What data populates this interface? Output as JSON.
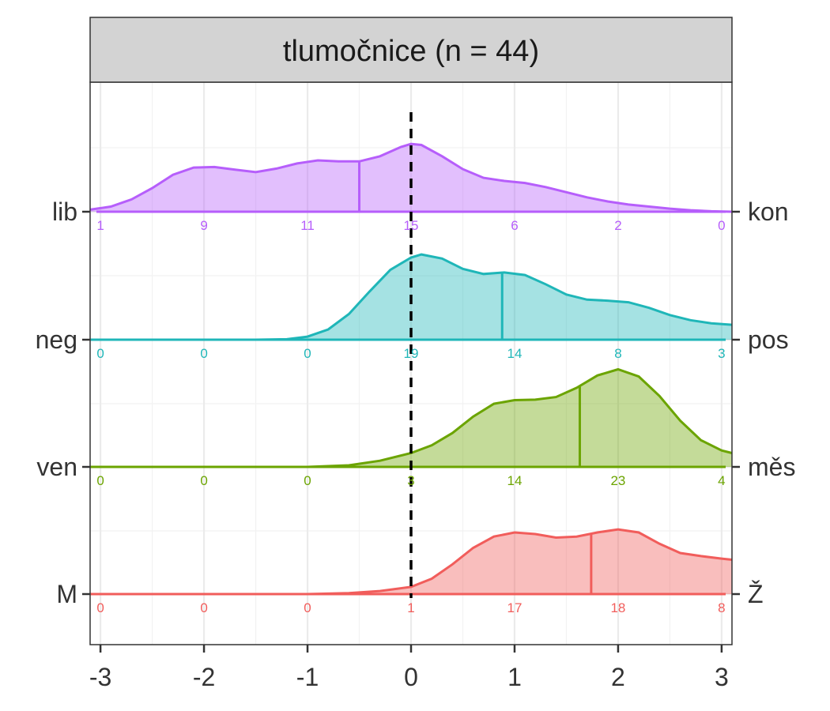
{
  "chart_data": {
    "type": "ridgeline",
    "title": "tlumočnice (n = 44)",
    "x_ticks": [
      "-3",
      "-2",
      "-1",
      "0",
      "1",
      "2",
      "3"
    ],
    "x_tick_values": [
      -3,
      -2,
      -1,
      0,
      1,
      2,
      3
    ],
    "xlim": [
      -3.1,
      3.1
    ],
    "reference_line_x": 0,
    "grid": true,
    "series": [
      {
        "left_label": "lib",
        "right_label": "kon",
        "color": "#b65efb",
        "counts": [
          "1",
          "9",
          "11",
          "15",
          "6",
          "2",
          "0"
        ],
        "mean": -0.5,
        "density": [
          [
            -3.1,
            0.04
          ],
          [
            -2.9,
            0.1
          ],
          [
            -2.7,
            0.24
          ],
          [
            -2.5,
            0.46
          ],
          [
            -2.3,
            0.72
          ],
          [
            -2.1,
            0.86
          ],
          [
            -1.9,
            0.87
          ],
          [
            -1.7,
            0.82
          ],
          [
            -1.5,
            0.77
          ],
          [
            -1.3,
            0.84
          ],
          [
            -1.1,
            0.94
          ],
          [
            -0.9,
            1.0
          ],
          [
            -0.7,
            0.98
          ],
          [
            -0.5,
            0.98
          ],
          [
            -0.3,
            1.08
          ],
          [
            -0.1,
            1.26
          ],
          [
            0.0,
            1.32
          ],
          [
            0.1,
            1.3
          ],
          [
            0.3,
            1.08
          ],
          [
            0.5,
            0.83
          ],
          [
            0.7,
            0.66
          ],
          [
            0.9,
            0.6
          ],
          [
            1.1,
            0.56
          ],
          [
            1.3,
            0.48
          ],
          [
            1.5,
            0.38
          ],
          [
            1.7,
            0.28
          ],
          [
            1.9,
            0.2
          ],
          [
            2.1,
            0.14
          ],
          [
            2.3,
            0.1
          ],
          [
            2.5,
            0.06
          ],
          [
            2.7,
            0.03
          ],
          [
            2.9,
            0.01
          ],
          [
            3.1,
            0.0
          ]
        ]
      },
      {
        "left_label": "neg",
        "right_label": "pos",
        "color": "#1fb6b8",
        "counts": [
          "0",
          "0",
          "0",
          "19",
          "14",
          "8",
          "3"
        ],
        "mean": 0.88,
        "density": [
          [
            -3.1,
            0.0
          ],
          [
            -1.5,
            0.0
          ],
          [
            -1.2,
            0.01
          ],
          [
            -1.0,
            0.06
          ],
          [
            -0.8,
            0.2
          ],
          [
            -0.6,
            0.5
          ],
          [
            -0.4,
            0.94
          ],
          [
            -0.2,
            1.36
          ],
          [
            0.0,
            1.6
          ],
          [
            0.1,
            1.66
          ],
          [
            0.3,
            1.58
          ],
          [
            0.5,
            1.38
          ],
          [
            0.7,
            1.28
          ],
          [
            0.9,
            1.31
          ],
          [
            1.1,
            1.26
          ],
          [
            1.3,
            1.08
          ],
          [
            1.5,
            0.88
          ],
          [
            1.7,
            0.78
          ],
          [
            1.9,
            0.76
          ],
          [
            2.1,
            0.73
          ],
          [
            2.3,
            0.62
          ],
          [
            2.5,
            0.48
          ],
          [
            2.7,
            0.38
          ],
          [
            2.9,
            0.32
          ],
          [
            3.1,
            0.29
          ]
        ]
      },
      {
        "left_label": "ven",
        "right_label": "měs",
        "color": "#6ba400",
        "counts": [
          "0",
          "0",
          "0",
          "3",
          "14",
          "23",
          "4"
        ],
        "mean": 1.63,
        "density": [
          [
            -3.1,
            0.0
          ],
          [
            -1.0,
            0.0
          ],
          [
            -0.6,
            0.03
          ],
          [
            -0.3,
            0.12
          ],
          [
            0.0,
            0.27
          ],
          [
            0.2,
            0.42
          ],
          [
            0.4,
            0.66
          ],
          [
            0.6,
            0.98
          ],
          [
            0.8,
            1.23
          ],
          [
            1.0,
            1.3
          ],
          [
            1.2,
            1.31
          ],
          [
            1.4,
            1.36
          ],
          [
            1.6,
            1.54
          ],
          [
            1.8,
            1.78
          ],
          [
            2.0,
            1.9
          ],
          [
            2.2,
            1.76
          ],
          [
            2.4,
            1.38
          ],
          [
            2.6,
            0.9
          ],
          [
            2.8,
            0.52
          ],
          [
            3.0,
            0.32
          ],
          [
            3.1,
            0.27
          ]
        ]
      },
      {
        "left_label": "M",
        "right_label": "Ž",
        "color": "#f15d5b",
        "counts": [
          "0",
          "0",
          "0",
          "1",
          "17",
          "18",
          "8"
        ],
        "mean": 1.74,
        "density": [
          [
            -3.1,
            0.0
          ],
          [
            -1.0,
            0.0
          ],
          [
            -0.6,
            0.02
          ],
          [
            -0.3,
            0.06
          ],
          [
            0.0,
            0.14
          ],
          [
            0.2,
            0.3
          ],
          [
            0.4,
            0.58
          ],
          [
            0.6,
            0.9
          ],
          [
            0.8,
            1.12
          ],
          [
            1.0,
            1.2
          ],
          [
            1.2,
            1.17
          ],
          [
            1.4,
            1.1
          ],
          [
            1.6,
            1.12
          ],
          [
            1.8,
            1.2
          ],
          [
            2.0,
            1.26
          ],
          [
            2.2,
            1.2
          ],
          [
            2.4,
            0.98
          ],
          [
            2.6,
            0.8
          ],
          [
            2.8,
            0.74
          ],
          [
            3.0,
            0.69
          ],
          [
            3.1,
            0.67
          ]
        ]
      }
    ]
  }
}
